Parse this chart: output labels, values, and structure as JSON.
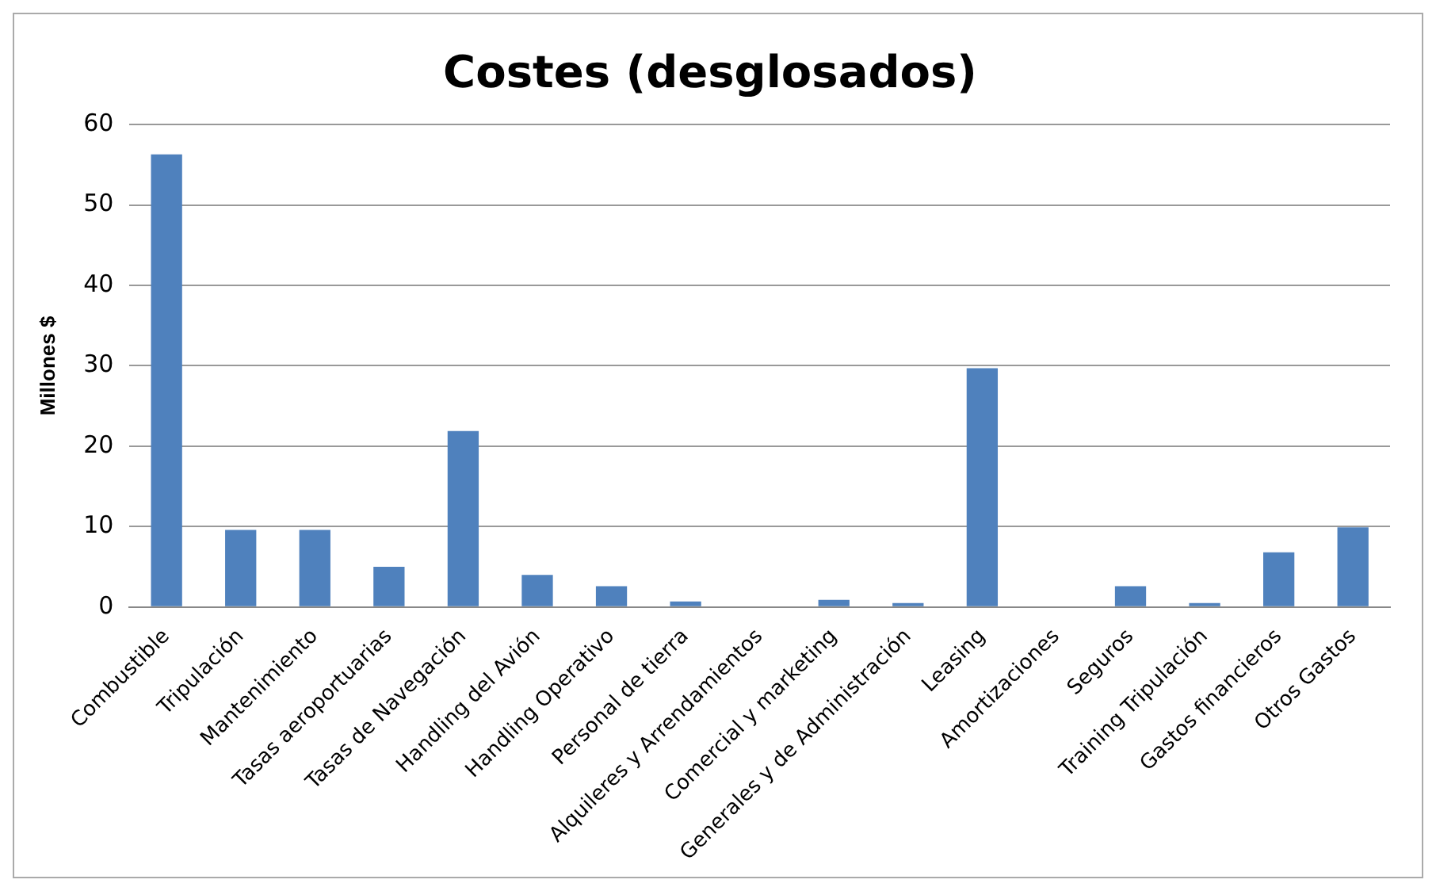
{
  "chart_data": {
    "type": "bar",
    "title": "Costes (desglosados)",
    "ylabel": "Millones $",
    "categories": [
      "Combustible",
      "Tripulación",
      "Mantenimiento",
      "Tasas aeroportuarias",
      "Tasas de Navegación",
      "Handling del Avión",
      "Handling Operativo",
      "Personal de tierra",
      "Alquileres y Arrendamientos",
      "Comercial y marketing",
      "Generales y de Administración",
      "Leasing",
      "Amortizaciones",
      "Seguros",
      "Training Tripulación",
      "Gastos financieros",
      "Otros Gastos"
    ],
    "values": [
      56.3,
      9.6,
      9.6,
      5.0,
      21.9,
      4.0,
      2.6,
      0.7,
      0,
      0.9,
      0.5,
      29.7,
      0,
      2.6,
      0.5,
      6.8,
      9.9
    ],
    "color": "#4f81bd",
    "ylim": [
      0,
      60
    ],
    "yticks": [
      0,
      10,
      20,
      30,
      40,
      50,
      60
    ],
    "grid": "y",
    "legend": false
  }
}
